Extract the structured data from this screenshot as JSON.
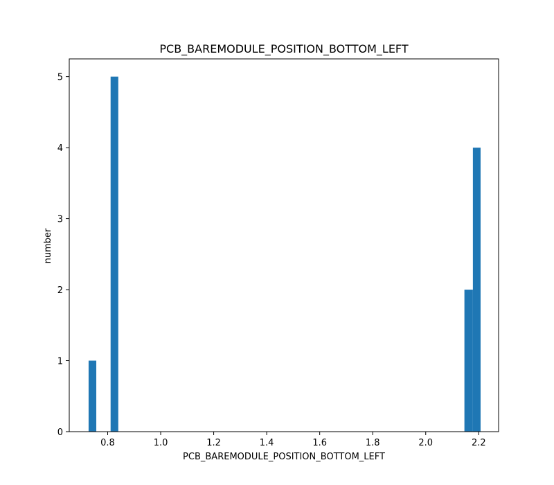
{
  "chart_data": {
    "type": "bar",
    "title": "PCB_BAREMODULE_POSITION_BOTTOM_LEFT",
    "xlabel": "PCB_BAREMODULE_POSITION_BOTTOM_LEFT",
    "ylabel": "number",
    "xlim": [
      0.655,
      2.275
    ],
    "ylim": [
      0,
      5.25
    ],
    "xticks": [
      0.8,
      1.0,
      1.2,
      1.4,
      1.6,
      1.8,
      2.0,
      2.2
    ],
    "xtick_labels": [
      "0.8",
      "1.0",
      "1.2",
      "1.4",
      "1.6",
      "1.8",
      "2.0",
      "2.2"
    ],
    "yticks": [
      0,
      1,
      2,
      3,
      4,
      5
    ],
    "ytick_labels": [
      "0",
      "1",
      "2",
      "3",
      "4",
      "5"
    ],
    "grid": false,
    "bar_color": "#1f77b4",
    "bars": [
      {
        "x0": 0.728,
        "x1": 0.757,
        "value": 1
      },
      {
        "x0": 0.811,
        "x1": 0.84,
        "value": 5
      },
      {
        "x0": 2.146,
        "x1": 2.178,
        "value": 2
      },
      {
        "x0": 2.178,
        "x1": 2.207,
        "value": 4
      }
    ]
  }
}
